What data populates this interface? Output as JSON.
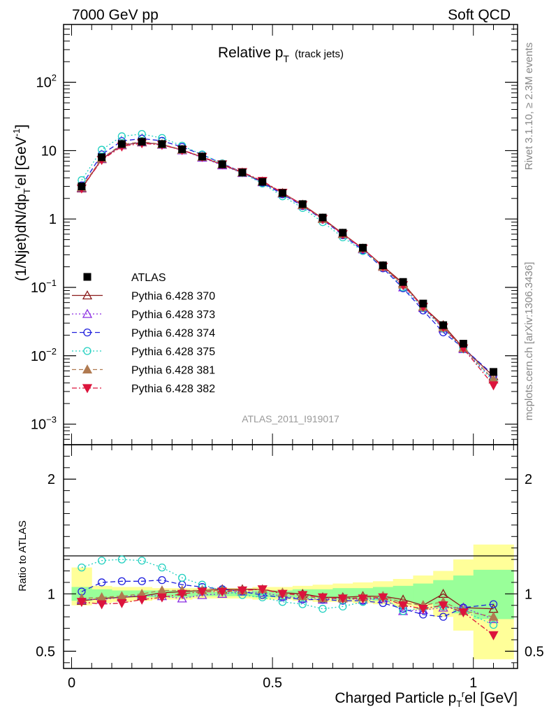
{
  "header": {
    "left": "7000 GeV pp",
    "right": "Soft QCD"
  },
  "side_texts": {
    "rivet": "Rivet 3.1.10, ≥ 2.3M events",
    "mcplots": "mcplots.cern.ch [arXiv:1306.3436]"
  },
  "colors": {
    "atlas": "#000000",
    "p370": "#8b1a1a",
    "p373": "#8a2be2",
    "p374": "#2020dd",
    "p375": "#20d0c0",
    "p381": "#b07a50",
    "p382": "#dc143c",
    "band_outer": "#ffff99",
    "band_inner": "#99ff99"
  },
  "chart_data": [
    {
      "type": "line",
      "title": "Relative p",
      "title_sub": "T",
      "title_note": "(track jets)",
      "watermark": "ATLAS_2011_I919017",
      "ylabel": "(1/Njet)dN/dp",
      "ylabel_sub": "T",
      "ylabel_sup": "r",
      "ylabel_tail": "el [GeV",
      "ylabel_unit_sup": "-1",
      "ylabel_close": "]",
      "yscale": "log",
      "ylim": [
        0.0005,
        700
      ],
      "xlim": [
        -0.02,
        1.11
      ],
      "yticks": [
        {
          "v": 0.001,
          "base": "10",
          "exp": "−3"
        },
        {
          "v": 0.01,
          "base": "10",
          "exp": "−2"
        },
        {
          "v": 0.1,
          "base": "10",
          "exp": "−1"
        },
        {
          "v": 1,
          "text": "1"
        },
        {
          "v": 10,
          "text": "10"
        },
        {
          "v": 100,
          "base": "10",
          "exp": "2"
        }
      ],
      "x": [
        0.025,
        0.075,
        0.125,
        0.175,
        0.225,
        0.275,
        0.325,
        0.375,
        0.425,
        0.475,
        0.525,
        0.575,
        0.625,
        0.675,
        0.725,
        0.775,
        0.825,
        0.875,
        0.925,
        0.975,
        1.05
      ],
      "series": [
        {
          "name": "ATLAS",
          "key": "atlas",
          "marker": "square",
          "dash": "",
          "values": [
            3.0,
            8.0,
            12.5,
            13.5,
            12.5,
            10.5,
            8.2,
            6.3,
            4.8,
            3.5,
            2.4,
            1.65,
            1.05,
            0.63,
            0.38,
            0.21,
            0.12,
            0.058,
            0.028,
            0.015,
            0.0058
          ]
        },
        {
          "name": "Pythia 6.428 370",
          "key": "p370",
          "marker": "triangle-open",
          "dash": "",
          "values": [
            2.8,
            7.5,
            12.0,
            13.2,
            12.3,
            10.2,
            8.0,
            6.2,
            4.75,
            3.5,
            2.4,
            1.62,
            1.02,
            0.61,
            0.37,
            0.205,
            0.115,
            0.052,
            0.028,
            0.013,
            0.005
          ]
        },
        {
          "name": "Pythia 6.428 373",
          "key": "p373",
          "marker": "triangle-open",
          "dash": "2,3",
          "values": [
            2.85,
            7.6,
            12.1,
            13.3,
            12.2,
            10.1,
            7.9,
            6.1,
            4.7,
            3.45,
            2.35,
            1.58,
            1.0,
            0.6,
            0.36,
            0.2,
            0.1,
            0.05,
            0.025,
            0.0125,
            0.0045
          ]
        },
        {
          "name": "Pythia 6.428 374",
          "key": "p374",
          "marker": "circle-open",
          "dash": "7,4",
          "values": [
            3.1,
            8.8,
            13.8,
            15.0,
            13.9,
            11.3,
            8.7,
            6.5,
            4.8,
            3.4,
            2.3,
            1.55,
            0.98,
            0.58,
            0.35,
            0.19,
            0.097,
            0.046,
            0.022,
            0.013,
            0.0052
          ]
        },
        {
          "name": "Pythia 6.428 375",
          "key": "p375",
          "marker": "circle-open",
          "dash": "2,3",
          "values": [
            3.7,
            10.3,
            16.2,
            17.5,
            15.3,
            11.8,
            8.8,
            6.5,
            4.7,
            3.3,
            2.15,
            1.45,
            0.9,
            0.54,
            0.34,
            0.2,
            0.1,
            0.05,
            0.025,
            0.0125,
            0.0042
          ]
        },
        {
          "name": "Pythia 6.428 381",
          "key": "p381",
          "marker": "triangle-filled",
          "dash": "6,4",
          "values": [
            2.9,
            7.7,
            12.3,
            13.5,
            12.4,
            10.3,
            8.1,
            6.3,
            4.8,
            3.55,
            2.4,
            1.6,
            1.0,
            0.6,
            0.37,
            0.2,
            0.11,
            0.052,
            0.026,
            0.013,
            0.0045
          ]
        },
        {
          "name": "Pythia 6.428 382",
          "key": "p382",
          "marker": "triangle-down-filled",
          "dash": "7,3,2,3",
          "values": [
            2.8,
            7.3,
            11.5,
            12.8,
            12.1,
            10.2,
            8.1,
            6.3,
            4.85,
            3.6,
            2.42,
            1.6,
            1.0,
            0.6,
            0.37,
            0.2,
            0.108,
            0.052,
            0.026,
            0.0128,
            0.0037
          ]
        }
      ]
    },
    {
      "type": "line",
      "xlabel": "Charged Particle p",
      "xlabel_sub": "T",
      "xlabel_sup": "r",
      "xlabel_tail": "el [GeV]",
      "ylabel": "Ratio to ATLAS",
      "ylim": [
        0.35,
        2.3
      ],
      "xlim": [
        -0.02,
        1.11
      ],
      "yticks": [
        0.5,
        1,
        2
      ],
      "xticks": [
        0,
        0.5,
        1
      ],
      "bins": [
        [
          0,
          0.05
        ],
        [
          0.05,
          0.1
        ],
        [
          0.1,
          0.15
        ],
        [
          0.15,
          0.2
        ],
        [
          0.2,
          0.25
        ],
        [
          0.25,
          0.3
        ],
        [
          0.3,
          0.35
        ],
        [
          0.35,
          0.4
        ],
        [
          0.4,
          0.45
        ],
        [
          0.45,
          0.5
        ],
        [
          0.5,
          0.55
        ],
        [
          0.55,
          0.6
        ],
        [
          0.6,
          0.65
        ],
        [
          0.65,
          0.7
        ],
        [
          0.7,
          0.75
        ],
        [
          0.75,
          0.8
        ],
        [
          0.8,
          0.85
        ],
        [
          0.85,
          0.9
        ],
        [
          0.9,
          0.95
        ],
        [
          0.95,
          1.0
        ],
        [
          1.0,
          1.1
        ]
      ],
      "band_outer": [
        [
          0.9,
          1.23
        ],
        [
          0.92,
          1.07
        ],
        [
          0.93,
          1.06
        ],
        [
          0.94,
          1.06
        ],
        [
          0.95,
          1.05
        ],
        [
          0.95,
          1.05
        ],
        [
          0.96,
          1.05
        ],
        [
          0.96,
          1.05
        ],
        [
          0.96,
          1.05
        ],
        [
          0.95,
          1.06
        ],
        [
          0.95,
          1.06
        ],
        [
          0.94,
          1.07
        ],
        [
          0.93,
          1.08
        ],
        [
          0.93,
          1.09
        ],
        [
          0.92,
          1.1
        ],
        [
          0.91,
          1.11
        ],
        [
          0.89,
          1.13
        ],
        [
          0.86,
          1.16
        ],
        [
          0.8,
          1.2
        ],
        [
          0.68,
          1.3
        ],
        [
          0.43,
          1.43
        ]
      ],
      "band_inner": [
        [
          0.94,
          1.06
        ],
        [
          0.96,
          1.04
        ],
        [
          0.97,
          1.03
        ],
        [
          0.97,
          1.03
        ],
        [
          0.97,
          1.03
        ],
        [
          0.97,
          1.03
        ],
        [
          0.98,
          1.03
        ],
        [
          0.98,
          1.02
        ],
        [
          0.98,
          1.02
        ],
        [
          0.97,
          1.03
        ],
        [
          0.97,
          1.03
        ],
        [
          0.96,
          1.04
        ],
        [
          0.96,
          1.04
        ],
        [
          0.95,
          1.05
        ],
        [
          0.95,
          1.05
        ],
        [
          0.94,
          1.06
        ],
        [
          0.93,
          1.07
        ],
        [
          0.91,
          1.09
        ],
        [
          0.88,
          1.12
        ],
        [
          0.83,
          1.16
        ],
        [
          0.78,
          1.21
        ]
      ],
      "series": [
        {
          "key": "p370",
          "marker": "triangle-open",
          "dash": "",
          "values": [
            0.94,
            0.96,
            0.97,
            0.98,
            1.01,
            1.02,
            1.03,
            1.04,
            1.04,
            1.04,
            1.01,
            1.0,
            0.97,
            0.97,
            0.98,
            0.98,
            0.95,
            0.9,
            1.0,
            0.88,
            0.87
          ]
        },
        {
          "key": "p373",
          "marker": "triangle-open",
          "dash": "2,3",
          "values": [
            0.95,
            0.95,
            0.97,
            0.99,
            0.98,
            0.96,
            0.99,
            1.0,
            1.02,
            1.01,
            0.98,
            0.96,
            0.95,
            0.96,
            0.95,
            0.96,
            0.85,
            0.86,
            0.88,
            0.88,
            0.78
          ]
        },
        {
          "key": "p374",
          "marker": "circle-open",
          "dash": "7,4",
          "values": [
            1.02,
            1.1,
            1.11,
            1.11,
            1.12,
            1.08,
            1.06,
            1.04,
            1.02,
            0.99,
            0.97,
            0.95,
            0.95,
            0.94,
            0.94,
            0.92,
            0.87,
            0.82,
            0.8,
            0.88,
            0.91
          ]
        },
        {
          "key": "p375",
          "marker": "circle-open",
          "dash": "2,3",
          "values": [
            1.23,
            1.29,
            1.3,
            1.29,
            1.23,
            1.14,
            1.08,
            1.03,
            0.99,
            0.97,
            0.93,
            0.91,
            0.87,
            0.89,
            0.93,
            0.97,
            0.85,
            0.88,
            0.89,
            0.85,
            0.73
          ]
        },
        {
          "key": "p381",
          "marker": "triangle-filled",
          "dash": "6,4",
          "values": [
            0.96,
            0.97,
            0.98,
            1.0,
            1.03,
            1.03,
            1.03,
            1.03,
            1.03,
            1.04,
            1.01,
            0.98,
            0.96,
            0.96,
            0.97,
            0.98,
            0.92,
            0.9,
            0.93,
            0.85,
            0.8
          ]
        },
        {
          "key": "p382",
          "marker": "triangle-down-filled",
          "dash": "7,3,2,3",
          "values": [
            0.93,
            0.91,
            0.92,
            0.95,
            0.97,
            1.0,
            1.02,
            1.02,
            1.03,
            1.04,
            1.0,
            0.99,
            0.97,
            0.96,
            0.96,
            0.97,
            0.9,
            0.87,
            0.9,
            0.84,
            0.64
          ]
        }
      ]
    }
  ]
}
